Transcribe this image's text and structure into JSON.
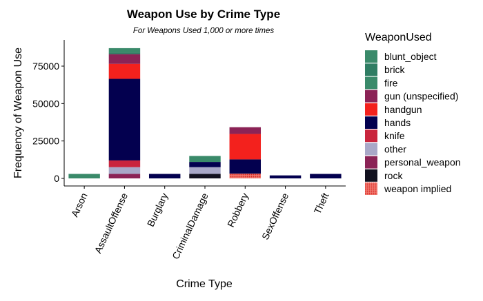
{
  "chart_data": {
    "type": "bar",
    "stacked": true,
    "title": "Weapon Use by Crime Type",
    "subtitle": "For Weapons Used 1,000 or more times",
    "xlabel": "Crime Type",
    "ylabel": "Frequency of Weapon Use",
    "ylim": [
      0,
      92000
    ],
    "yticks": [
      0,
      25000,
      50000,
      75000
    ],
    "categories": [
      "Arson",
      "AssaultOffense",
      "Burglary",
      "CriminalDamage",
      "Robbery",
      "SexOffense",
      "Theft"
    ],
    "grid": false,
    "legend": {
      "title": "WeaponUsed",
      "position": "right"
    },
    "series": [
      {
        "name": "weapon implied",
        "color": "#e8473f",
        "pattern": "dotted",
        "values": [
          0,
          0,
          0,
          0,
          3200,
          0,
          0
        ]
      },
      {
        "name": "rock",
        "color": "#12111f",
        "values": [
          0,
          0,
          0,
          3000,
          0,
          0,
          0
        ]
      },
      {
        "name": "personal_weapon",
        "color": "#8b2356",
        "values": [
          0,
          3000,
          0,
          0,
          0,
          0,
          0
        ]
      },
      {
        "name": "other",
        "color": "#a9a8c8",
        "values": [
          0,
          4500,
          0,
          4500,
          0,
          0,
          0
        ]
      },
      {
        "name": "knife",
        "color": "#c9253d",
        "values": [
          0,
          4500,
          0,
          0,
          0,
          0,
          0
        ]
      },
      {
        "name": "hands",
        "color": "#03004f",
        "values": [
          0,
          54500,
          3000,
          3500,
          9500,
          2000,
          3000
        ]
      },
      {
        "name": "handgun",
        "color": "#f3211d",
        "values": [
          0,
          10000,
          0,
          0,
          17000,
          0,
          0
        ]
      },
      {
        "name": "gun (unspecified)",
        "color": "#8b2356",
        "values": [
          0,
          6500,
          0,
          0,
          4500,
          0,
          0
        ]
      },
      {
        "name": "fire",
        "color": "#3a8a6a",
        "values": [
          3000,
          0,
          0,
          0,
          0,
          0,
          0
        ]
      },
      {
        "name": "brick",
        "color": "#2f7d63",
        "values": [
          0,
          1000,
          0,
          0,
          0,
          0,
          0
        ]
      },
      {
        "name": "blunt_object",
        "color": "#3a8a6a",
        "values": [
          0,
          3000,
          0,
          4000,
          0,
          0,
          0
        ]
      }
    ],
    "legend_order": [
      "blunt_object",
      "brick",
      "fire",
      "gun (unspecified)",
      "handgun",
      "hands",
      "knife",
      "other",
      "personal_weapon",
      "rock",
      "weapon implied"
    ]
  }
}
